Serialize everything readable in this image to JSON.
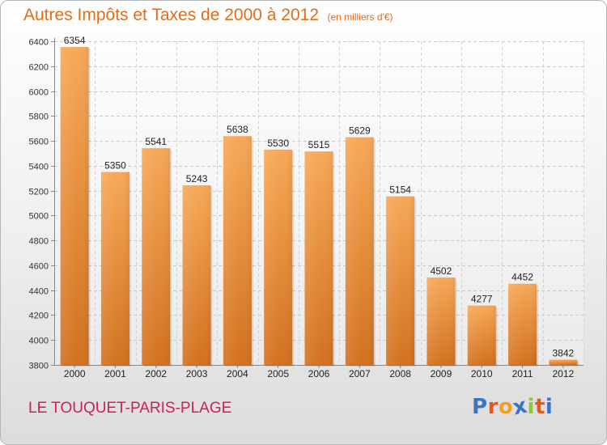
{
  "title": "Autres Impôts et Taxes de 2000 à 2012",
  "subtitle": "(en milliers d'€)",
  "location": "LE TOUQUET-PARIS-PLAGE",
  "logo": {
    "letters": [
      "P",
      "r",
      "o",
      "x",
      "i",
      "t",
      "i"
    ],
    "colors": [
      "#3b74c2",
      "#e05a1c",
      "#f0a020",
      "#3b74c2",
      "#8cc63e",
      "#e05a1c",
      "#3b74c2"
    ]
  },
  "colors": {
    "bar_top": "#f7a857",
    "bar_bottom": "#d2711f",
    "title": "#e36c1a",
    "location": "#cc1f5f"
  },
  "chart_data": {
    "type": "bar",
    "categories": [
      "2000",
      "2001",
      "2002",
      "2003",
      "2004",
      "2005",
      "2006",
      "2007",
      "2008",
      "2009",
      "2010",
      "2011",
      "2012"
    ],
    "values": [
      6354,
      5350,
      5541,
      5243,
      5638,
      5530,
      5515,
      5629,
      5154,
      4502,
      4277,
      4452,
      3842
    ],
    "value_labels": [
      "6354",
      "5350",
      "5541",
      "5243",
      "5638",
      "5530",
      "5515",
      "5629",
      "5154",
      "4502",
      "4277",
      "4452",
      "3842"
    ],
    "ylim": [
      3800,
      6400
    ],
    "yticks": [
      3800,
      4000,
      4200,
      4400,
      4600,
      4800,
      5000,
      5200,
      5400,
      5600,
      5800,
      6000,
      6200,
      6400
    ],
    "ytick_labels": [
      "3800",
      "4000",
      "4200",
      "4400",
      "4600",
      "4800",
      "5000",
      "5200",
      "5400",
      "5600",
      "5800",
      "6000",
      "6200",
      "6400"
    ],
    "grid": true,
    "xlabel": "",
    "ylabel": ""
  }
}
